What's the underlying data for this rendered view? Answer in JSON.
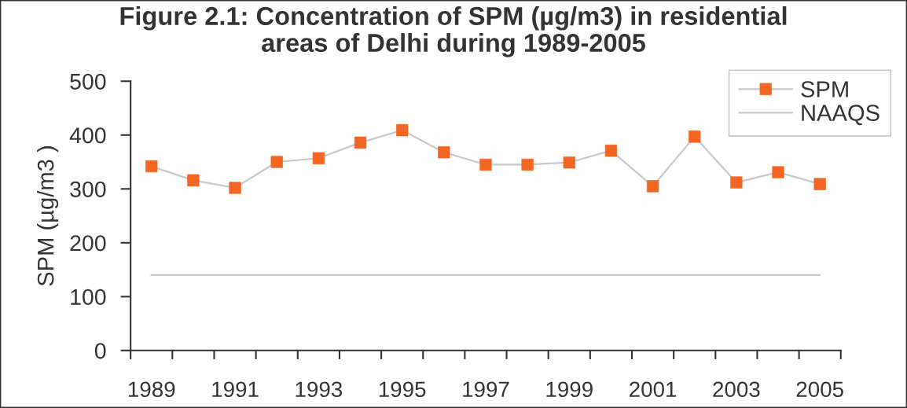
{
  "chart_data": {
    "type": "line",
    "title": "Figure 2.1: Concentration of SPM (µg/m3) in residential\nareas of Delhi during 1989-2005",
    "ylabel": "SPM (µg/m3 )",
    "categories": [
      "1989",
      null,
      "1991",
      null,
      "1993",
      null,
      "1995",
      null,
      "1997",
      null,
      "1999",
      null,
      "2001",
      null,
      "2003",
      null,
      "2005"
    ],
    "series": [
      {
        "name": "SPM",
        "color": "#f26522",
        "marker": "square",
        "values": [
          342,
          316,
          302,
          350,
          357,
          386,
          409,
          368,
          345,
          345,
          349,
          371,
          305,
          397,
          312,
          331,
          309
        ]
      },
      {
        "name": "NAAQS",
        "color": "#c8c8c8",
        "marker": "none",
        "values": [
          140,
          140,
          140,
          140,
          140,
          140,
          140,
          140,
          140,
          140,
          140,
          140,
          140,
          140,
          140,
          140,
          140
        ]
      }
    ],
    "ylim": [
      0,
      500
    ],
    "yticks": [
      0,
      100,
      200,
      300,
      400,
      500
    ],
    "grid": false,
    "legend": "top right",
    "line_style": "solid"
  }
}
